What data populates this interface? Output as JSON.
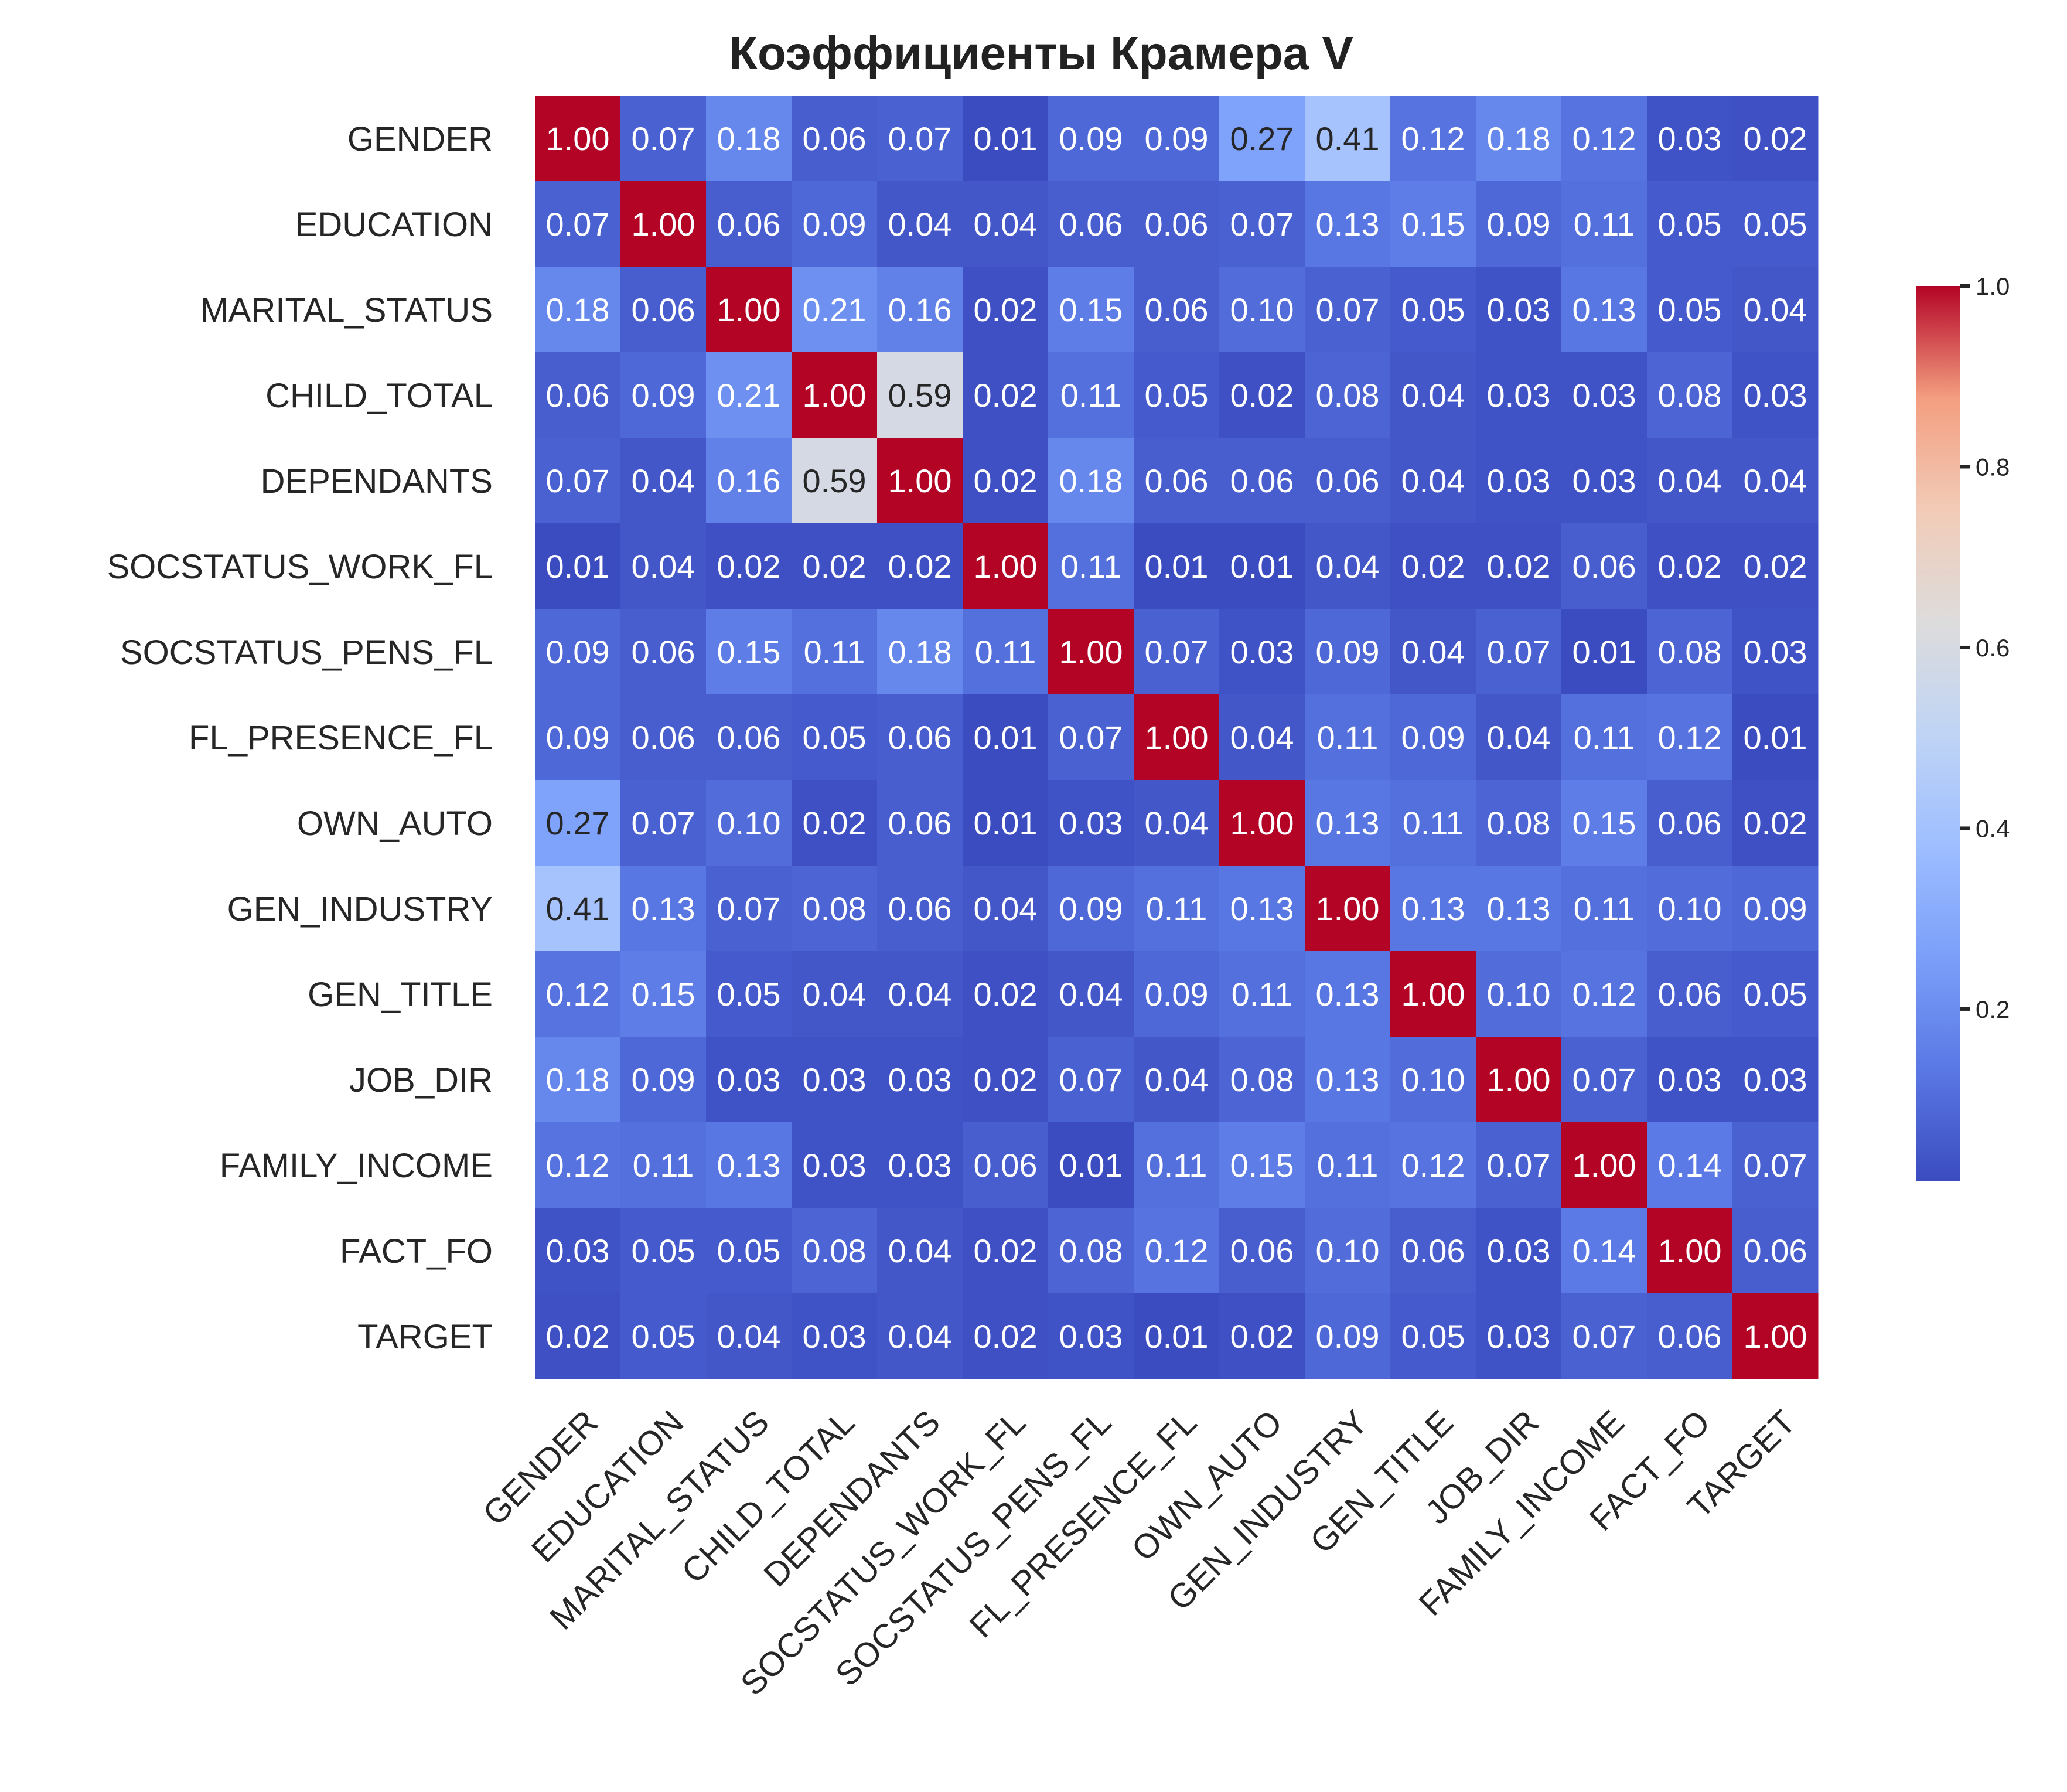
{
  "chart_data": {
    "type": "heatmap",
    "title": "Коэффициенты Крамера V",
    "x_categories": [
      "GENDER",
      "EDUCATION",
      "MARITAL_STATUS",
      "CHILD_TOTAL",
      "DEPENDANTS",
      "SOCSTATUS_WORK_FL",
      "SOCSTATUS_PENS_FL",
      "FL_PRESENCE_FL",
      "OWN_AUTO",
      "GEN_INDUSTRY",
      "GEN_TITLE",
      "JOB_DIR",
      "FAMILY_INCOME",
      "FACT_FO",
      "TARGET"
    ],
    "y_categories": [
      "GENDER",
      "EDUCATION",
      "MARITAL_STATUS",
      "CHILD_TOTAL",
      "DEPENDANTS",
      "SOCSTATUS_WORK_FL",
      "SOCSTATUS_PENS_FL",
      "FL_PRESENCE_FL",
      "OWN_AUTO",
      "GEN_INDUSTRY",
      "GEN_TITLE",
      "JOB_DIR",
      "FAMILY_INCOME",
      "FACT_FO",
      "TARGET"
    ],
    "values": [
      [
        1.0,
        0.07,
        0.18,
        0.06,
        0.07,
        0.01,
        0.09,
        0.09,
        0.27,
        0.41,
        0.12,
        0.18,
        0.12,
        0.03,
        0.02
      ],
      [
        0.07,
        1.0,
        0.06,
        0.09,
        0.04,
        0.04,
        0.06,
        0.06,
        0.07,
        0.13,
        0.15,
        0.09,
        0.11,
        0.05,
        0.05
      ],
      [
        0.18,
        0.06,
        1.0,
        0.21,
        0.16,
        0.02,
        0.15,
        0.06,
        0.1,
        0.07,
        0.05,
        0.03,
        0.13,
        0.05,
        0.04
      ],
      [
        0.06,
        0.09,
        0.21,
        1.0,
        0.59,
        0.02,
        0.11,
        0.05,
        0.02,
        0.08,
        0.04,
        0.03,
        0.03,
        0.08,
        0.03
      ],
      [
        0.07,
        0.04,
        0.16,
        0.59,
        1.0,
        0.02,
        0.18,
        0.06,
        0.06,
        0.06,
        0.04,
        0.03,
        0.03,
        0.04,
        0.04
      ],
      [
        0.01,
        0.04,
        0.02,
        0.02,
        0.02,
        1.0,
        0.11,
        0.01,
        0.01,
        0.04,
        0.02,
        0.02,
        0.06,
        0.02,
        0.02
      ],
      [
        0.09,
        0.06,
        0.15,
        0.11,
        0.18,
        0.11,
        1.0,
        0.07,
        0.03,
        0.09,
        0.04,
        0.07,
        0.01,
        0.08,
        0.03
      ],
      [
        0.09,
        0.06,
        0.06,
        0.05,
        0.06,
        0.01,
        0.07,
        1.0,
        0.04,
        0.11,
        0.09,
        0.04,
        0.11,
        0.12,
        0.01
      ],
      [
        0.27,
        0.07,
        0.1,
        0.02,
        0.06,
        0.01,
        0.03,
        0.04,
        1.0,
        0.13,
        0.11,
        0.08,
        0.15,
        0.06,
        0.02
      ],
      [
        0.41,
        0.13,
        0.07,
        0.08,
        0.06,
        0.04,
        0.09,
        0.11,
        0.13,
        1.0,
        0.13,
        0.13,
        0.11,
        0.1,
        0.09
      ],
      [
        0.12,
        0.15,
        0.05,
        0.04,
        0.04,
        0.02,
        0.04,
        0.09,
        0.11,
        0.13,
        1.0,
        0.1,
        0.12,
        0.06,
        0.05
      ],
      [
        0.18,
        0.09,
        0.03,
        0.03,
        0.03,
        0.02,
        0.07,
        0.04,
        0.08,
        0.13,
        0.1,
        1.0,
        0.07,
        0.03,
        0.03
      ],
      [
        0.12,
        0.11,
        0.13,
        0.03,
        0.03,
        0.06,
        0.01,
        0.11,
        0.15,
        0.11,
        0.12,
        0.07,
        1.0,
        0.14,
        0.07
      ],
      [
        0.03,
        0.05,
        0.05,
        0.08,
        0.04,
        0.02,
        0.08,
        0.12,
        0.06,
        0.1,
        0.06,
        0.03,
        0.14,
        1.0,
        0.06
      ],
      [
        0.02,
        0.05,
        0.04,
        0.03,
        0.04,
        0.02,
        0.03,
        0.01,
        0.02,
        0.09,
        0.05,
        0.03,
        0.07,
        0.06,
        1.0
      ]
    ],
    "colormap": "coolwarm",
    "vmin": 0.01,
    "vmax": 1.0,
    "colorbar_ticks": [
      "0.2",
      "0.4",
      "0.6",
      "0.8",
      "1.0"
    ],
    "colorbar_tick_values": [
      0.2,
      0.4,
      0.6,
      0.8,
      1.0
    ],
    "annotation_format": "0.00",
    "grid": false,
    "legend": "colorbar-right"
  }
}
